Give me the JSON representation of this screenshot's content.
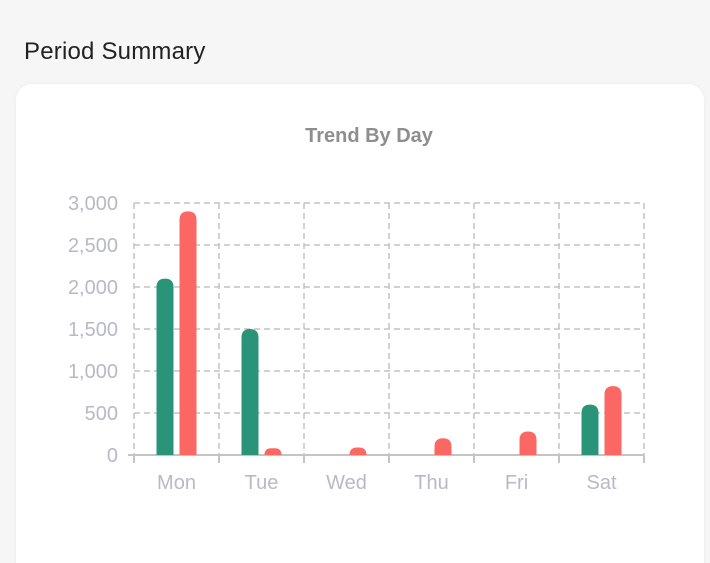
{
  "section": {
    "title": "Period Summary"
  },
  "colors": {
    "series_1": "#2a9478",
    "series_2": "#fb6762",
    "grid": "#c4c4c4",
    "axis_text": "#b8b8c8",
    "title_text": "#8e8e8e"
  },
  "chart_data": {
    "type": "bar",
    "title": "Trend By Day",
    "xlabel": "",
    "ylabel": "",
    "categories": [
      "Mon",
      "Tue",
      "Wed",
      "Thu",
      "Fri",
      "Sat"
    ],
    "series": [
      {
        "values": [
          2100,
          1500,
          0,
          0,
          0,
          600
        ]
      },
      {
        "values": [
          2900,
          80,
          90,
          200,
          280,
          820
        ]
      }
    ],
    "ylim": [
      0,
      3000
    ],
    "yticks": [
      "0",
      "500",
      "1,000",
      "1,500",
      "2,000",
      "2,500",
      "3,000"
    ],
    "grid": true,
    "legend": "none"
  }
}
